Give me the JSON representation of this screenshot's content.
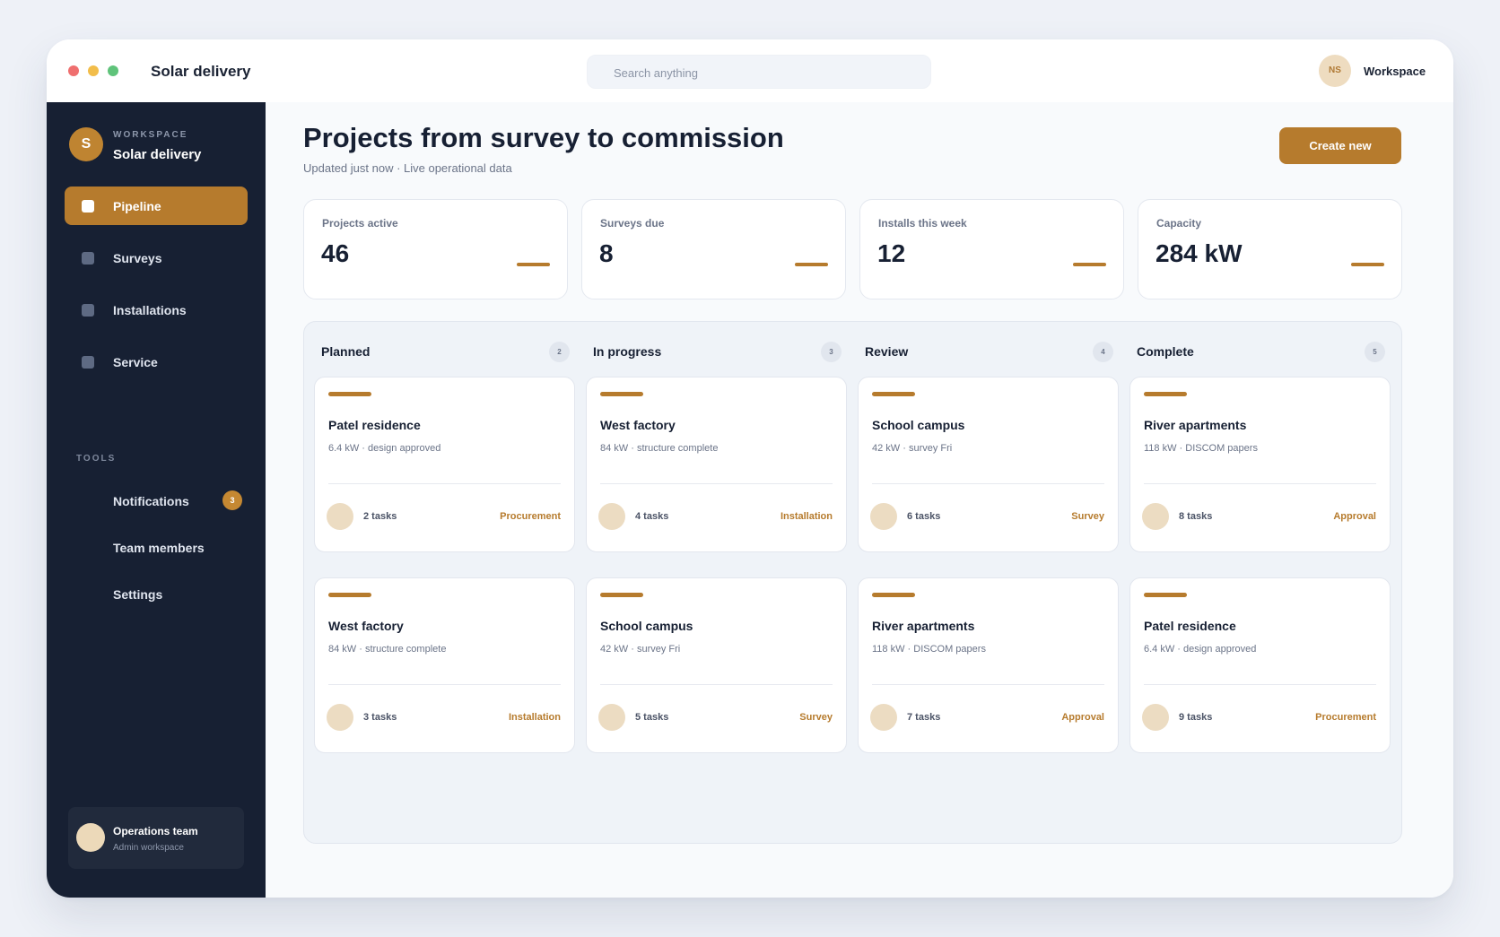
{
  "window": {
    "app_title": "Solar delivery",
    "search_placeholder": "Search anything",
    "user_initials": "NS",
    "workspace_link": "Workspace"
  },
  "sidebar": {
    "workspace_label": "WORKSPACE",
    "workspace_name": "Solar delivery",
    "workspace_initial": "S",
    "nav": [
      {
        "label": "Pipeline",
        "active": true
      },
      {
        "label": "Surveys",
        "active": false
      },
      {
        "label": "Installations",
        "active": false
      },
      {
        "label": "Service",
        "active": false
      }
    ],
    "tools_label": "TOOLS",
    "tools": [
      {
        "label": "Notifications",
        "badge": "3"
      },
      {
        "label": "Team members"
      },
      {
        "label": "Settings"
      }
    ],
    "team": {
      "name": "Operations team",
      "sub": "Admin workspace"
    }
  },
  "header": {
    "title": "Projects from survey to commission",
    "subtitle": "Updated just now · Live operational data",
    "create_label": "Create new"
  },
  "stats": [
    {
      "label": "Projects active",
      "value": "46"
    },
    {
      "label": "Surveys due",
      "value": "8"
    },
    {
      "label": "Installs this week",
      "value": "12"
    },
    {
      "label": "Capacity",
      "value": "284 kW"
    }
  ],
  "columns": [
    {
      "title": "Planned",
      "count": "2",
      "cards": [
        {
          "title": "Patel residence",
          "meta": "6.4 kW · design approved",
          "tasks": "2 tasks",
          "tag": "Procurement"
        },
        {
          "title": "West factory",
          "meta": "84 kW · structure complete",
          "tasks": "3 tasks",
          "tag": "Installation"
        }
      ]
    },
    {
      "title": "In progress",
      "count": "3",
      "cards": [
        {
          "title": "West factory",
          "meta": "84 kW · structure complete",
          "tasks": "4 tasks",
          "tag": "Installation"
        },
        {
          "title": "School campus",
          "meta": "42 kW · survey Fri",
          "tasks": "5 tasks",
          "tag": "Survey"
        }
      ]
    },
    {
      "title": "Review",
      "count": "4",
      "cards": [
        {
          "title": "School campus",
          "meta": "42 kW · survey Fri",
          "tasks": "6 tasks",
          "tag": "Survey"
        },
        {
          "title": "River apartments",
          "meta": "118 kW · DISCOM papers",
          "tasks": "7 tasks",
          "tag": "Approval"
        }
      ]
    },
    {
      "title": "Complete",
      "count": "5",
      "cards": [
        {
          "title": "River apartments",
          "meta": "118 kW · DISCOM papers",
          "tasks": "8 tasks",
          "tag": "Approval"
        },
        {
          "title": "Patel residence",
          "meta": "6.4 kW · design approved",
          "tasks": "9 tasks",
          "tag": "Procurement"
        }
      ]
    }
  ],
  "colors": {
    "accent": "#b67b2d",
    "sidebar": "#172033"
  }
}
